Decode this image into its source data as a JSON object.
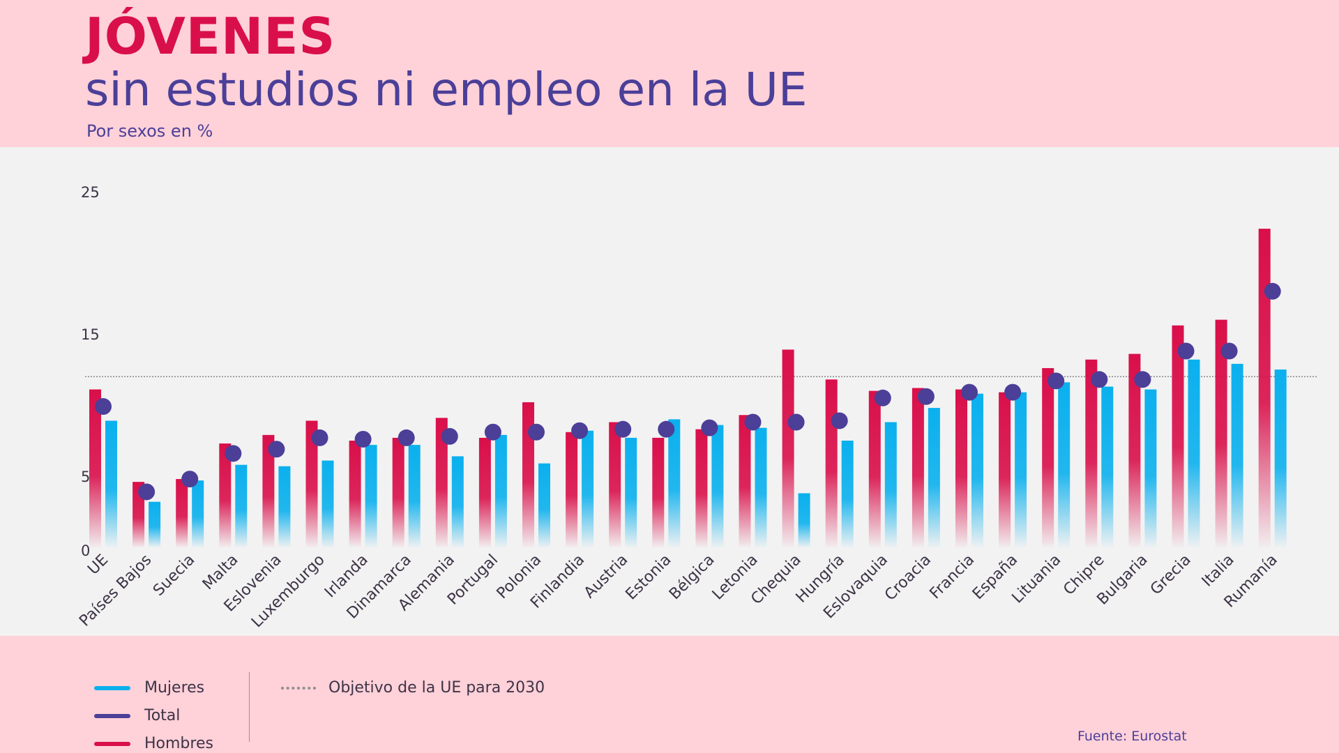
{
  "header": {
    "title": "JÓVENES",
    "subtitle": "sin estudios ni empleo en la UE",
    "units": "Por sexos en %"
  },
  "legend": {
    "women": "Mujeres",
    "total": "Total",
    "men": "Hombres",
    "target": "Objetivo de la UE para 2030"
  },
  "source": "Fuente: Eurostat",
  "colors": {
    "men": "#d90f4a",
    "women": "#0ab0ee",
    "total": "#4b3f98",
    "target": "#8e8e8e"
  },
  "chart_data": {
    "type": "bar",
    "title": "JÓVENES",
    "subtitle": "sin estudios ni empleo en la UE",
    "ylabel": "Por sexos en %",
    "ylim": [
      0,
      25
    ],
    "yticks": [
      0,
      5,
      15,
      25
    ],
    "target_line": 12,
    "categories": [
      "UE",
      "Países Bajos",
      "Suecia",
      "Malta",
      "Eslovenia",
      "Luxemburgo",
      "Irlanda",
      "Dinamarca",
      "Alemania",
      "Portugal",
      "Polonia",
      "Finlandia",
      "Austria",
      "Estonia",
      "Bélgica",
      "Letonia",
      "Chequia",
      "Hungría",
      "Eslovaquia",
      "Croacia",
      "Francia",
      "España",
      "Lituania",
      "Chipre",
      "Bulgaria",
      "Grecia",
      "Italia",
      "Rumanía"
    ],
    "series": [
      {
        "name": "Hombres",
        "values": [
          11.1,
          4.6,
          4.8,
          7.3,
          7.9,
          8.9,
          7.5,
          7.7,
          9.1,
          7.7,
          10.2,
          8.1,
          8.8,
          7.7,
          8.3,
          9.3,
          13.9,
          11.8,
          11.0,
          11.2,
          11.1,
          10.9,
          12.6,
          13.2,
          13.6,
          15.6,
          16.0,
          22.4
        ]
      },
      {
        "name": "Mujeres",
        "values": [
          8.9,
          3.2,
          4.7,
          5.8,
          5.7,
          6.1,
          7.2,
          7.2,
          6.4,
          7.9,
          5.9,
          8.2,
          7.7,
          9.0,
          8.6,
          8.4,
          3.8,
          7.5,
          8.8,
          9.8,
          10.8,
          10.9,
          11.6,
          11.3,
          11.1,
          13.2,
          12.9,
          12.5
        ]
      },
      {
        "name": "Total",
        "values": [
          9.9,
          3.9,
          4.8,
          6.6,
          6.9,
          7.7,
          7.6,
          7.7,
          7.8,
          8.1,
          8.1,
          8.2,
          8.3,
          8.3,
          8.4,
          8.8,
          8.8,
          8.9,
          10.5,
          10.6,
          10.9,
          10.9,
          11.7,
          11.8,
          11.8,
          13.8,
          13.8,
          18.0
        ]
      }
    ]
  }
}
